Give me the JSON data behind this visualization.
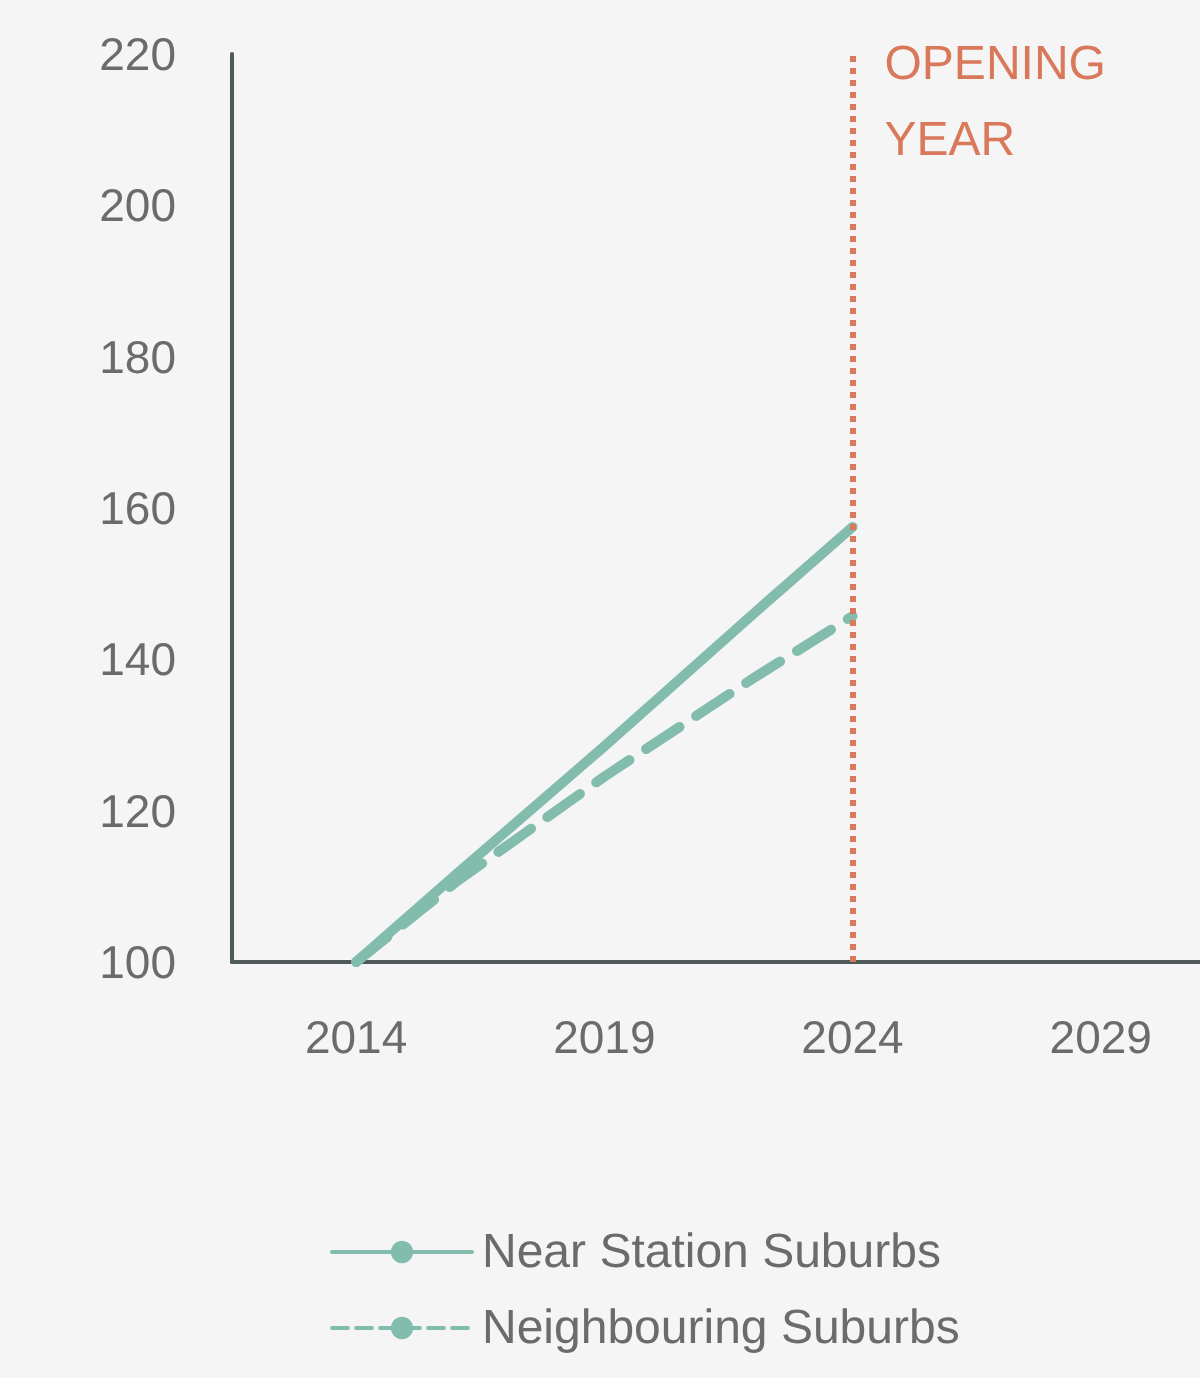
{
  "chart_data": {
    "type": "line",
    "x": [
      2014,
      2016,
      2019,
      2022,
      2024
    ],
    "series": [
      {
        "name": "Near Station Suburbs",
        "color": "#82bcac",
        "values": [
          100,
          111.5,
          128.5,
          146,
          157.5
        ],
        "line_style": "solid"
      },
      {
        "name": "Neighbouring Suburbs",
        "color": "#82bcac",
        "values": [
          100,
          110.5,
          124.5,
          137.5,
          145.7
        ],
        "line_style": "dashed"
      }
    ],
    "xlim": [
      2011.5,
      2031
    ],
    "xticks": [
      2014,
      2019,
      2024,
      2029
    ],
    "ylim": [
      100,
      220
    ],
    "yticks": [
      100,
      120,
      140,
      160,
      180,
      200,
      220
    ],
    "ref_lines": [
      {
        "axis": "x",
        "value": 2024,
        "label": "OPENING YEAR",
        "color": "#d9785a",
        "line_style": "dotted"
      }
    ],
    "grid": false,
    "legend": "bottom",
    "marker": "none"
  }
}
